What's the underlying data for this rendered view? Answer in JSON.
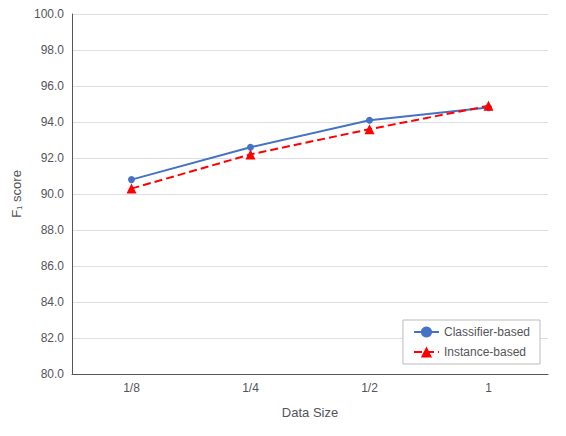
{
  "chart_data": {
    "type": "line",
    "categories": [
      "1/8",
      "1/4",
      "1/2",
      "1"
    ],
    "series": [
      {
        "name": "Classifier-based",
        "color": "#4472c4",
        "values": [
          90.8,
          92.6,
          94.1,
          94.8
        ],
        "marker": "circle",
        "line_style": "solid"
      },
      {
        "name": "Instance-based",
        "color": "#ff0000",
        "values": [
          90.3,
          92.2,
          93.6,
          94.9
        ],
        "marker": "triangle",
        "line_style": "dashed"
      }
    ],
    "xlabel": "Data Size",
    "ylabel": "F₁ score",
    "ylim": [
      80.0,
      100.0
    ],
    "yticks": [
      {
        "value": 80.0,
        "label": "80.0"
      },
      {
        "value": 82.0,
        "label": "82.0"
      },
      {
        "value": 84.0,
        "label": "84.0"
      },
      {
        "value": 86.0,
        "label": "86.0"
      },
      {
        "value": 88.0,
        "label": "88.0"
      },
      {
        "value": 90.0,
        "label": "90.0"
      },
      {
        "value": 92.0,
        "label": "92.0"
      },
      {
        "value": 94.0,
        "label": "94.0"
      },
      {
        "value": 96.0,
        "label": "96.0"
      },
      {
        "value": 98.0,
        "label": "98.0"
      },
      {
        "value": 100.0,
        "label": "100.0"
      }
    ],
    "grid": true,
    "legend": "lower right"
  }
}
